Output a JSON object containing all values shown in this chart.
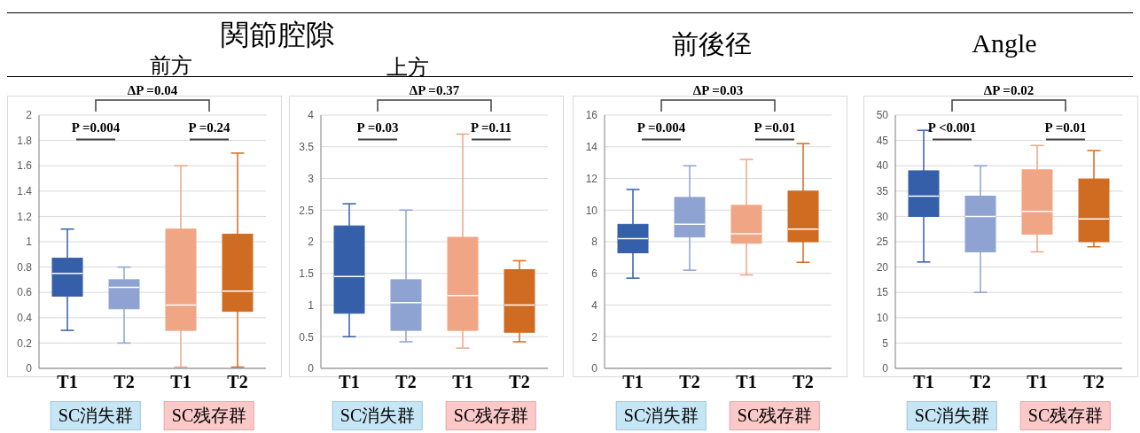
{
  "chart_data": [
    {
      "type": "box",
      "title": "前方",
      "categories": [
        "T1",
        "T2",
        "T1",
        "T2"
      ],
      "colors": [
        "#355fa8",
        "#8ea3d1",
        "#f0a585",
        "#d06c22"
      ],
      "boxes": [
        {
          "low": 0.3,
          "q1": 0.57,
          "median": 0.75,
          "q3": 0.87,
          "high": 1.1
        },
        {
          "low": 0.2,
          "q1": 0.47,
          "median": 0.64,
          "q3": 0.7,
          "high": 0.8
        },
        {
          "low": 0.01,
          "q1": 0.3,
          "median": 0.5,
          "q3": 1.1,
          "high": 1.6
        },
        {
          "low": 0.01,
          "q1": 0.45,
          "median": 0.61,
          "q3": 1.06,
          "high": 1.7
        }
      ],
      "ylim": [
        0,
        2
      ],
      "yticks": [
        0,
        0.2,
        0.4,
        0.6,
        0.8,
        1,
        1.2,
        1.4,
        1.6,
        1.8,
        2
      ],
      "grid": "y",
      "legend": false,
      "annotations": [
        "ΔP =0.04",
        "P =0.004",
        "P =0.24",
        "SC消失群",
        "SC残存群",
        "関節腔隙"
      ]
    },
    {
      "type": "box",
      "title": "上方",
      "categories": [
        "T1",
        "T2",
        "T1",
        "T2"
      ],
      "colors": [
        "#355fa8",
        "#8ea3d1",
        "#f0a585",
        "#d06c22"
      ],
      "boxes": [
        {
          "low": 0.5,
          "q1": 0.87,
          "median": 1.45,
          "q3": 2.25,
          "high": 2.6
        },
        {
          "low": 0.42,
          "q1": 0.6,
          "median": 1.04,
          "q3": 1.4,
          "high": 2.5
        },
        {
          "low": 0.32,
          "q1": 0.6,
          "median": 1.15,
          "q3": 2.07,
          "high": 3.7
        },
        {
          "low": 0.42,
          "q1": 0.57,
          "median": 1.0,
          "q3": 1.56,
          "high": 1.7
        }
      ],
      "ylim": [
        0,
        4
      ],
      "yticks": [
        0,
        0.5,
        1,
        1.5,
        2,
        2.5,
        3,
        3.5,
        4
      ],
      "grid": "y",
      "legend": false,
      "annotations": [
        "ΔP =0.37",
        "P =0.03",
        "P =0.11",
        "SC消失群",
        "SC残存群"
      ]
    },
    {
      "type": "box",
      "title": "前後径",
      "categories": [
        "T1",
        "T2",
        "T1",
        "T2"
      ],
      "colors": [
        "#355fa8",
        "#8ea3d1",
        "#f0a585",
        "#d06c22"
      ],
      "boxes": [
        {
          "low": 5.7,
          "q1": 7.3,
          "median": 8.2,
          "q3": 9.1,
          "high": 11.3
        },
        {
          "low": 6.2,
          "q1": 8.3,
          "median": 9.1,
          "q3": 10.8,
          "high": 12.8
        },
        {
          "low": 5.9,
          "q1": 7.9,
          "median": 8.5,
          "q3": 10.3,
          "high": 13.2
        },
        {
          "low": 6.7,
          "q1": 8.0,
          "median": 8.8,
          "q3": 11.2,
          "high": 14.2
        }
      ],
      "ylim": [
        0,
        16
      ],
      "yticks": [
        0,
        2,
        4,
        6,
        8,
        10,
        12,
        14,
        16
      ],
      "grid": "y",
      "legend": false,
      "annotations": [
        "ΔP =0.03",
        "P =0.004",
        "P =0.01",
        "SC消失群",
        "SC残存群"
      ]
    },
    {
      "type": "box",
      "title": "Angle",
      "categories": [
        "T1",
        "T2",
        "T1",
        "T2"
      ],
      "colors": [
        "#355fa8",
        "#8ea3d1",
        "#f0a585",
        "#d06c22"
      ],
      "boxes": [
        {
          "low": 21,
          "q1": 30,
          "median": 34,
          "q3": 39,
          "high": 47
        },
        {
          "low": 15,
          "q1": 23,
          "median": 30,
          "q3": 34,
          "high": 40
        },
        {
          "low": 23,
          "q1": 26.5,
          "median": 31,
          "q3": 39.2,
          "high": 44
        },
        {
          "low": 24,
          "q1": 25,
          "median": 29.5,
          "q3": 37.4,
          "high": 43
        }
      ],
      "ylim": [
        0,
        50
      ],
      "yticks": [
        0,
        5,
        10,
        15,
        20,
        25,
        30,
        35,
        40,
        45,
        50
      ],
      "grid": "y",
      "legend": false,
      "annotations": [
        "ΔP =0.02",
        "P <0.001",
        "P =0.01",
        "SC消失群",
        "SC残存群"
      ]
    }
  ]
}
